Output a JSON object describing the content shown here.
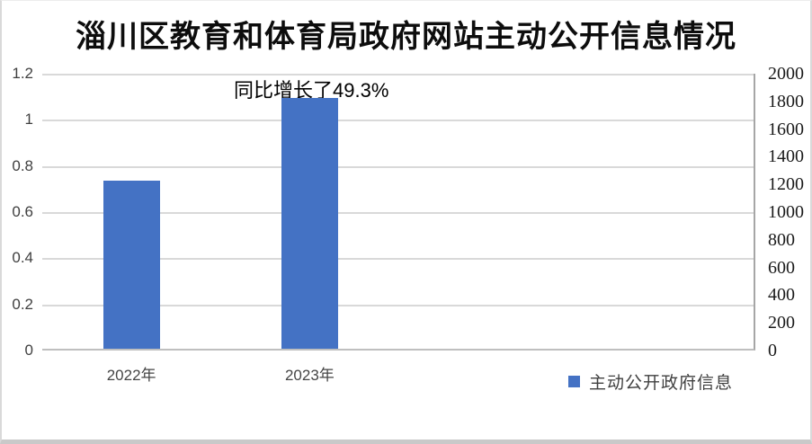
{
  "chart_data": {
    "type": "bar",
    "title": "淄川区教育和体育局政府网站主动公开信息情况",
    "categories": [
      "2022年",
      "2023年"
    ],
    "series": [
      {
        "name": "主动公开政府信息",
        "values": [
          1212,
          1810
        ],
        "axis": "right",
        "color": "#4472C4"
      }
    ],
    "annotation": {
      "text": "同比增长了49.3%"
    },
    "left_axis": {
      "min": 0,
      "max": 1.2,
      "step": 0.2,
      "ticks": [
        "1.2",
        "1",
        "0.8",
        "0.6",
        "0.4",
        "0.2",
        "0"
      ]
    },
    "right_axis": {
      "min": 0,
      "max": 2000,
      "step": 200,
      "ticks": [
        "2000",
        "1800",
        "1600",
        "1400",
        "1200",
        "1000",
        "800",
        "600",
        "400",
        "200",
        "0"
      ]
    },
    "grid": true,
    "legend_position": "bottom-right",
    "colors": {
      "bar": "#4472C4",
      "gridline": "#d9d9d9",
      "right_axis_line": "#a6a6a6",
      "bottom_axis_line": "#bfbfbf",
      "title_text": "#0d0d0d",
      "axis_text": "#3f3f3f"
    }
  },
  "legend": {
    "label": "主动公开政府信息"
  }
}
